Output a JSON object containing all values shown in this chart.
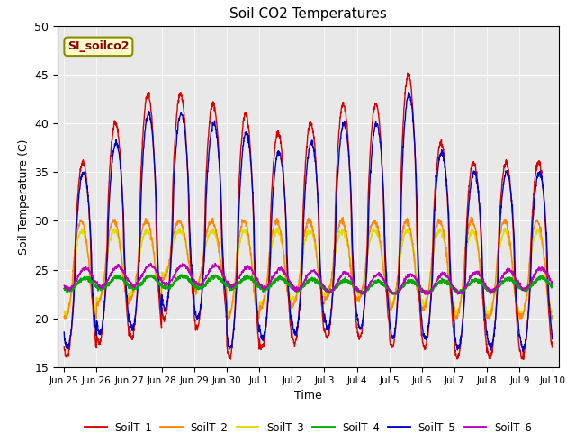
{
  "title": "Soil CO2 Temperatures",
  "xlabel": "Time",
  "ylabel": "Soil Temperature (C)",
  "ylim": [
    15,
    50
  ],
  "annotation": "SI_soilco2",
  "legend_labels": [
    "SoilT_1",
    "SoilT_2",
    "SoilT_3",
    "SoilT_4",
    "SoilT_5",
    "SoilT_6"
  ],
  "colors": {
    "SoilT_1": "#dd0000",
    "SoilT_2": "#ff8800",
    "SoilT_3": "#dddd00",
    "SoilT_4": "#00aa00",
    "SoilT_5": "#0000cc",
    "SoilT_6": "#bb00bb"
  },
  "yticks": [
    15,
    20,
    25,
    30,
    35,
    40,
    45,
    50
  ],
  "xtick_labels": [
    "Jun 25",
    "Jun 26",
    "Jun 27",
    "Jun 28",
    "Jun 29",
    "Jun 30",
    "Jul 1",
    "Jul 2",
    "Jul 3",
    "Jul 4",
    "Jul 5",
    "Jul 6",
    "Jul 7",
    "Jul 8",
    "Jul 9",
    "Jul 10"
  ],
  "xtick_positions": [
    0,
    1,
    2,
    3,
    4,
    5,
    6,
    7,
    8,
    9,
    10,
    11,
    12,
    13,
    14,
    15
  ]
}
